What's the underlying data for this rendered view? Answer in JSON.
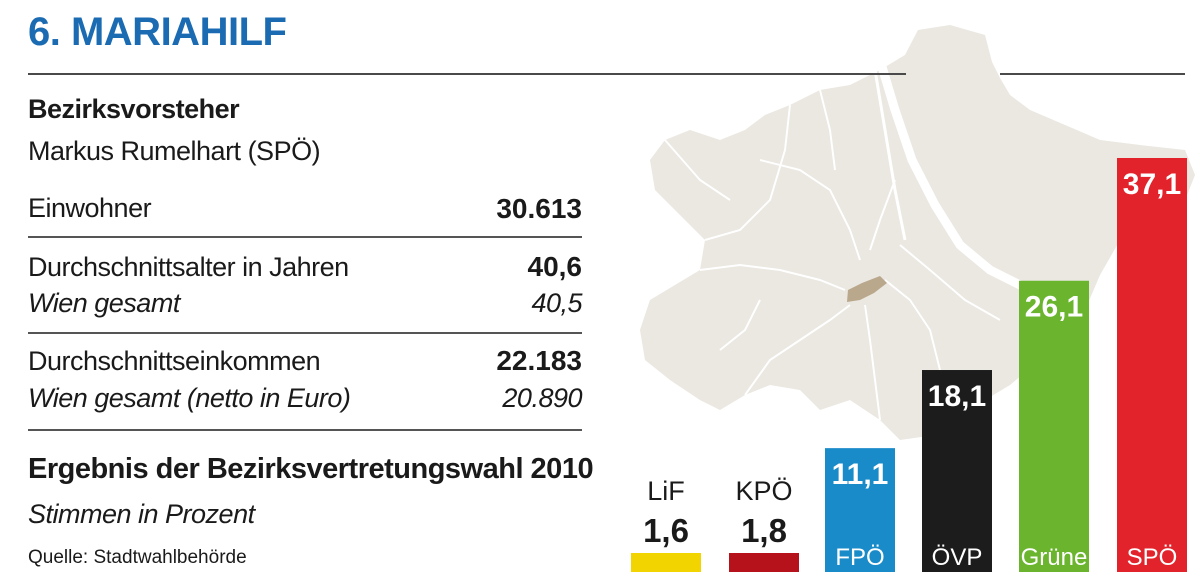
{
  "title": "6. MARIAHILF",
  "mayor": {
    "heading": "Bezirksvorsteher",
    "name": "Markus Rumelhart (SPÖ)"
  },
  "stats": {
    "population": {
      "label": "Einwohner",
      "value": "30.613"
    },
    "age": {
      "label": "Durchschnittsalter in Jahren",
      "value": "40,6",
      "sub_label": "Wien gesamt",
      "sub_value": "40,5"
    },
    "income": {
      "label": "Durchschnittseinkommen",
      "value": "22.183",
      "sub_label": "Wien gesamt (netto in Euro)",
      "sub_value": "20.890"
    }
  },
  "election": {
    "heading": "Ergebnis der Bezirksvertretungswahl 2010",
    "subheading": "Stimmen in Prozent"
  },
  "source": "Quelle: Stadtwahlbehörde",
  "chart_data": {
    "type": "bar",
    "title": "Ergebnis der Bezirksvertretungswahl 2010",
    "ylabel": "Stimmen in Prozent",
    "categories": [
      "LiF",
      "KPÖ",
      "FPÖ",
      "ÖVP",
      "Grüne",
      "SPÖ"
    ],
    "values": [
      1.6,
      1.8,
      11.1,
      18.1,
      26.1,
      37.1
    ],
    "value_labels": [
      "1,6",
      "1,8",
      "11,1",
      "18,1",
      "26,1",
      "37,1"
    ],
    "colors": [
      "#f2d500",
      "#b5121b",
      "#1a8bc9",
      "#1c1c1c",
      "#6ab42e",
      "#e3232b"
    ],
    "ylim": [
      0,
      37.1
    ]
  },
  "colors": {
    "title": "#1b6bb3",
    "map_fill": "#ebe7e1",
    "map_lines": "#ffffff",
    "district_highlight": "#b9a88b"
  }
}
